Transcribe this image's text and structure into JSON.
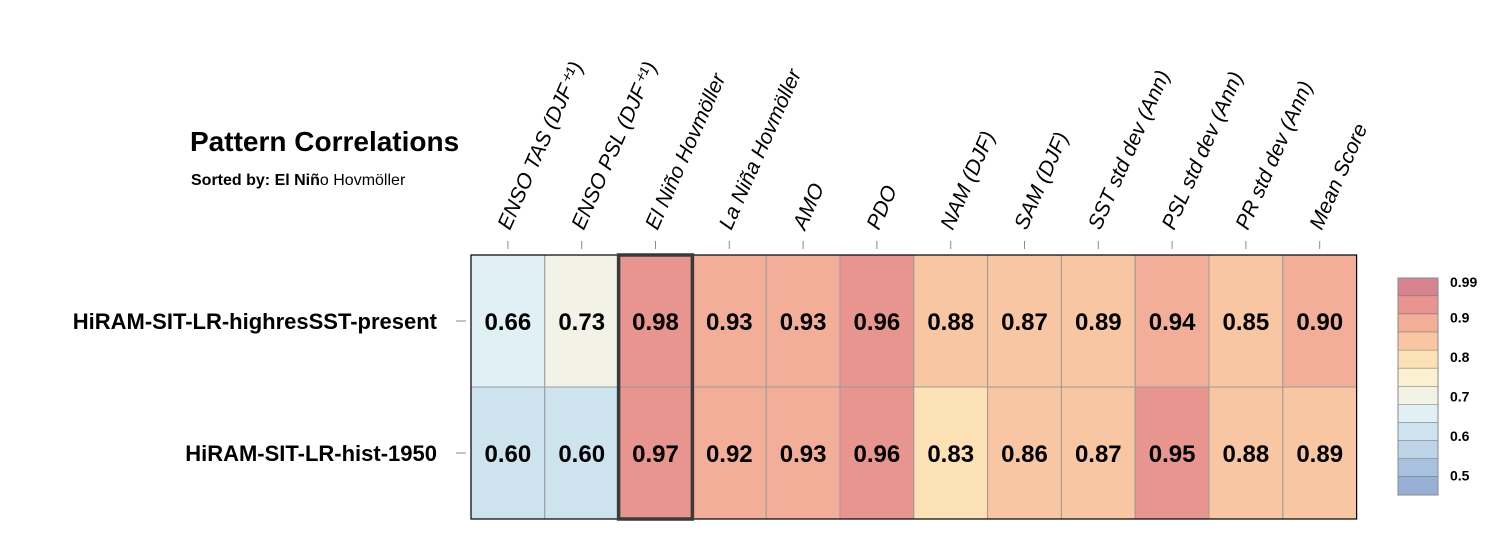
{
  "title": "Pattern Correlations",
  "subtitle": {
    "prefix": "Sorted by: El Niñ",
    "suffix": "o Hovmöller"
  },
  "chart_data": {
    "type": "heatmap",
    "columns": [
      "ENSO TAS (DJF⁺¹)",
      "ENSO PSL (DJF⁺¹)",
      "El Niño Hovmöller",
      "La Niña Hovmöller",
      "AMO",
      "PDO",
      "NAM (DJF)",
      "SAM (DJF)",
      "SST std dev (Ann)",
      "PSL std dev (Ann)",
      "PR std dev (Ann)",
      "Mean Score"
    ],
    "rows": [
      "HiRAM-SIT-LR-highresSST-present",
      "HiRAM-SIT-LR-hist-1950"
    ],
    "values": [
      [
        0.66,
        0.73,
        0.98,
        0.93,
        0.93,
        0.96,
        0.88,
        0.87,
        0.89,
        0.94,
        0.85,
        0.9
      ],
      [
        0.6,
        0.6,
        0.97,
        0.92,
        0.93,
        0.96,
        0.83,
        0.86,
        0.87,
        0.95,
        0.88,
        0.89
      ]
    ],
    "cell_labels": [
      [
        "0.66",
        "0.73",
        "0.98",
        "0.93",
        "0.93",
        "0.96",
        "0.88",
        "0.87",
        "0.89",
        "0.94",
        "0.85",
        "0.90"
      ],
      [
        "0.60",
        "0.60",
        "0.97",
        "0.92",
        "0.93",
        "0.96",
        "0.83",
        "0.86",
        "0.87",
        "0.95",
        "0.88",
        "0.89"
      ]
    ],
    "highlighted_column": "El Niño Hovmöller",
    "colorbar": {
      "tick_labels": [
        "0.99",
        "0.9",
        "0.8",
        "0.7",
        "0.6",
        "0.5"
      ],
      "tick_values": [
        0.99,
        0.9,
        0.8,
        0.7,
        0.6,
        0.5
      ],
      "bands": [
        {
          "low": 0.99,
          "high": 1.0,
          "color": "#d6848f"
        },
        {
          "low": 0.95,
          "high": 0.99,
          "color": "#e7958e"
        },
        {
          "low": 0.9,
          "high": 0.95,
          "color": "#f2ae98"
        },
        {
          "low": 0.85,
          "high": 0.9,
          "color": "#f9c6a3"
        },
        {
          "low": 0.8,
          "high": 0.85,
          "color": "#fde1b6"
        },
        {
          "low": 0.75,
          "high": 0.8,
          "color": "#fbf0d0"
        },
        {
          "low": 0.7,
          "high": 0.75,
          "color": "#f2f2e7"
        },
        {
          "low": 0.65,
          "high": 0.7,
          "color": "#e0f0f4"
        },
        {
          "low": 0.6,
          "high": 0.65,
          "color": "#cde3ee"
        },
        {
          "low": 0.55,
          "high": 0.6,
          "color": "#bcd4e6"
        },
        {
          "low": 0.5,
          "high": 0.55,
          "color": "#a8c1de"
        },
        {
          "low": 0.45,
          "high": 0.5,
          "color": "#98b0d6"
        }
      ],
      "legend_placement": "right"
    }
  }
}
